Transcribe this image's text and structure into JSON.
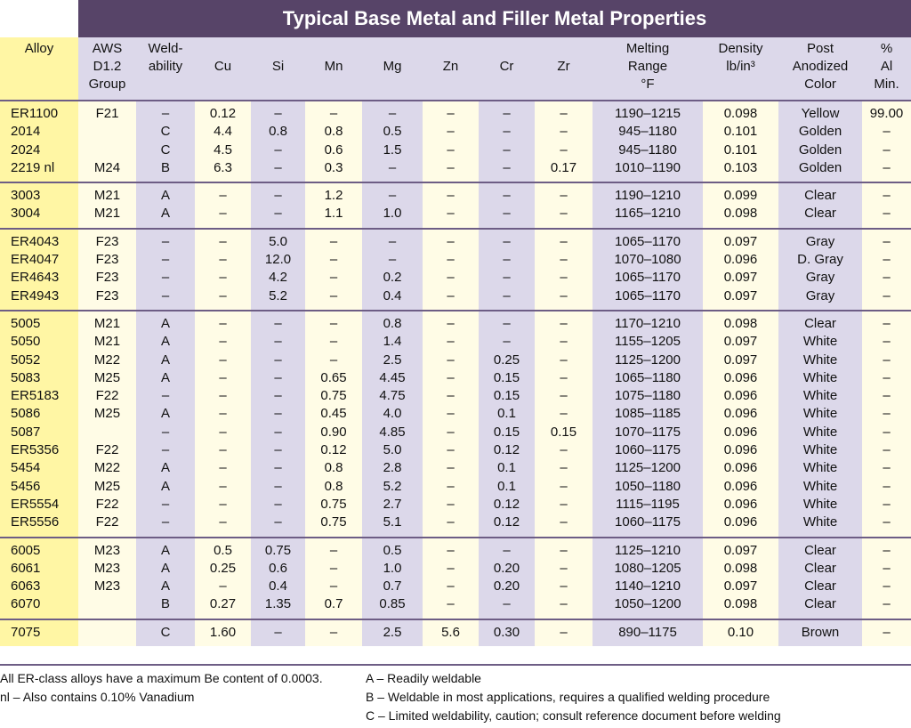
{
  "title": "Typical Base Metal and Filler Metal Properties",
  "headers": {
    "alloy": "Alloy",
    "aws": [
      "AWS",
      "D1.2",
      "Group"
    ],
    "weld": [
      "Weld-",
      "ability"
    ],
    "cu": "Cu",
    "si": "Si",
    "mn": "Mn",
    "mg": "Mg",
    "zn": "Zn",
    "cr": "Cr",
    "zr": "Zr",
    "melting": [
      "Melting",
      "Range",
      "°F"
    ],
    "density": [
      "Density",
      "lb/in³"
    ],
    "color": [
      "Post",
      "Anodized",
      "Color"
    ],
    "al": [
      "%",
      "Al",
      "Min."
    ]
  },
  "groups": [
    [
      [
        "ER1100",
        "F21",
        "–",
        "0.12",
        "–",
        "–",
        "–",
        "–",
        "–",
        "–",
        "1190–1215",
        "0.098",
        "Yellow",
        "99.00"
      ],
      [
        "2014",
        "",
        "C",
        "4.4",
        "0.8",
        "0.8",
        "0.5",
        "–",
        "–",
        "–",
        "945–1180",
        "0.101",
        "Golden",
        "–"
      ],
      [
        "2024",
        "",
        "C",
        "4.5",
        "–",
        "0.6",
        "1.5",
        "–",
        "–",
        "–",
        "945–1180",
        "0.101",
        "Golden",
        "–"
      ],
      [
        "2219 nl",
        "M24",
        "B",
        "6.3",
        "–",
        "0.3",
        "–",
        "–",
        "–",
        "0.17",
        "1010–1190",
        "0.103",
        "Golden",
        "–"
      ]
    ],
    [
      [
        "3003",
        "M21",
        "A",
        "–",
        "–",
        "1.2",
        "–",
        "–",
        "–",
        "–",
        "1190–1210",
        "0.099",
        "Clear",
        "–"
      ],
      [
        "3004",
        "M21",
        "A",
        "–",
        "–",
        "1.1",
        "1.0",
        "–",
        "–",
        "–",
        "1165–1210",
        "0.098",
        "Clear",
        "–"
      ]
    ],
    [
      [
        "ER4043",
        "F23",
        "–",
        "–",
        "5.0",
        "–",
        "–",
        "–",
        "–",
        "–",
        "1065–1170",
        "0.097",
        "Gray",
        "–"
      ],
      [
        "ER4047",
        "F23",
        "–",
        "–",
        "12.0",
        "–",
        "–",
        "–",
        "–",
        "–",
        "1070–1080",
        "0.096",
        "D. Gray",
        "–"
      ],
      [
        "ER4643",
        "F23",
        "–",
        "–",
        "4.2",
        "–",
        "0.2",
        "–",
        "–",
        "–",
        "1065–1170",
        "0.097",
        "Gray",
        "–"
      ],
      [
        "ER4943",
        "F23",
        "–",
        "–",
        "5.2",
        "–",
        "0.4",
        "–",
        "–",
        "–",
        "1065–1170",
        "0.097",
        "Gray",
        "–"
      ]
    ],
    [
      [
        "5005",
        "M21",
        "A",
        "–",
        "–",
        "–",
        "0.8",
        "–",
        "–",
        "–",
        "1170–1210",
        "0.098",
        "Clear",
        "–"
      ],
      [
        "5050",
        "M21",
        "A",
        "–",
        "–",
        "–",
        "1.4",
        "–",
        "–",
        "–",
        "1155–1205",
        "0.097",
        "White",
        "–"
      ],
      [
        "5052",
        "M22",
        "A",
        "–",
        "–",
        "–",
        "2.5",
        "–",
        "0.25",
        "–",
        "1125–1200",
        "0.097",
        "White",
        "–"
      ],
      [
        "5083",
        "M25",
        "A",
        "–",
        "–",
        "0.65",
        "4.45",
        "–",
        "0.15",
        "–",
        "1065–1180",
        "0.096",
        "White",
        "–"
      ],
      [
        "ER5183",
        "F22",
        "–",
        "–",
        "–",
        "0.75",
        "4.75",
        "–",
        "0.15",
        "–",
        "1075–1180",
        "0.096",
        "White",
        "–"
      ],
      [
        "5086",
        "M25",
        "A",
        "–",
        "–",
        "0.45",
        "4.0",
        "–",
        "0.1",
        "–",
        "1085–1185",
        "0.096",
        "White",
        "–"
      ],
      [
        "5087",
        "",
        "–",
        "–",
        "–",
        "0.90",
        "4.85",
        "–",
        "0.15",
        "0.15",
        "1070–1175",
        "0.096",
        "White",
        "–"
      ],
      [
        "ER5356",
        "F22",
        "–",
        "–",
        "–",
        "0.12",
        "5.0",
        "–",
        "0.12",
        "–",
        "1060–1175",
        "0.096",
        "White",
        "–"
      ],
      [
        "5454",
        "M22",
        "A",
        "–",
        "–",
        "0.8",
        "2.8",
        "–",
        "0.1",
        "–",
        "1125–1200",
        "0.096",
        "White",
        "–"
      ],
      [
        "5456",
        "M25",
        "A",
        "–",
        "–",
        "0.8",
        "5.2",
        "–",
        "0.1",
        "–",
        "1050–1180",
        "0.096",
        "White",
        "–"
      ],
      [
        "ER5554",
        "F22",
        "–",
        "–",
        "–",
        "0.75",
        "2.7",
        "–",
        "0.12",
        "–",
        "1115–1195",
        "0.096",
        "White",
        "–"
      ],
      [
        "ER5556",
        "F22",
        "–",
        "–",
        "–",
        "0.75",
        "5.1",
        "–",
        "0.12",
        "–",
        "1060–1175",
        "0.096",
        "White",
        "–"
      ]
    ],
    [
      [
        "6005",
        "M23",
        "A",
        "0.5",
        "0.75",
        "–",
        "0.5",
        "–",
        "–",
        "–",
        "1125–1210",
        "0.097",
        "Clear",
        "–"
      ],
      [
        "6061",
        "M23",
        "A",
        "0.25",
        "0.6",
        "–",
        "1.0",
        "–",
        "0.20",
        "–",
        "1080–1205",
        "0.098",
        "Clear",
        "–"
      ],
      [
        "6063",
        "M23",
        "A",
        "–",
        "0.4",
        "–",
        "0.7",
        "–",
        "0.20",
        "–",
        "1140–1210",
        "0.097",
        "Clear",
        "–"
      ],
      [
        "6070",
        "",
        "B",
        "0.27",
        "1.35",
        "0.7",
        "0.85",
        "–",
        "–",
        "–",
        "1050–1200",
        "0.098",
        "Clear",
        "–"
      ]
    ],
    [
      [
        "7075",
        "",
        "C",
        "1.60",
        "–",
        "–",
        "2.5",
        "5.6",
        "0.30",
        "–",
        "890–1175",
        "0.10",
        "Brown",
        "–"
      ]
    ]
  ],
  "notes_left": [
    "All ER-class alloys have a maximum Be content of 0.0003.",
    "nl –  Also contains 0.10% Vanadium"
  ],
  "notes_right": [
    "A – Readily weldable",
    "B – Weldable in most applications, requires a qualified welding procedure",
    "C – Limited weldability, caution; consult reference document before welding"
  ],
  "colors": {
    "header_bar": "#574468",
    "band": "#dcd8ea",
    "alloy_col": "#fff6a4",
    "row_light": "#fffce6",
    "divider": "#6d5d85"
  }
}
